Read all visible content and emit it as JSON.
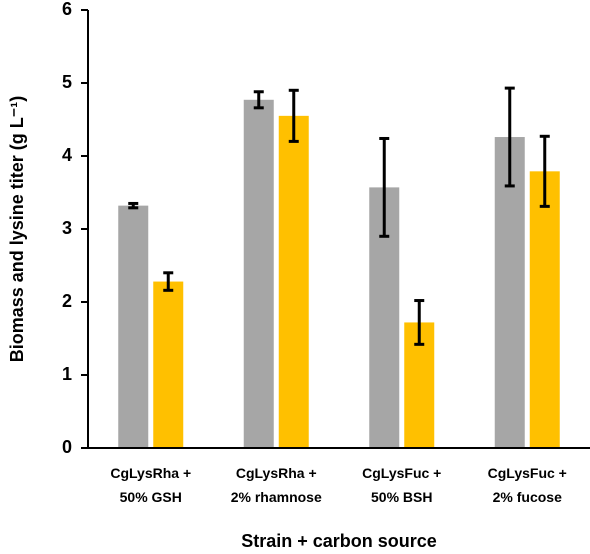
{
  "chart_data": {
    "type": "bar",
    "y_label": "Biomass and lysine titer (g L⁻¹)",
    "x_label": "Strain + carbon source",
    "categories": [
      "CgLysRha +\n50% GSH",
      "CgLysRha +\n2% rhamnose",
      "CgLysFuc +\n50% BSH",
      "CgLysFuc +\n2% fucose"
    ],
    "series": [
      {
        "color": "#a6a6a6",
        "values": [
          3.32,
          4.77,
          3.57,
          4.26
        ],
        "errors": [
          0.03,
          0.11,
          0.67,
          0.67
        ]
      },
      {
        "color": "#ffc000",
        "values": [
          2.28,
          4.55,
          1.72,
          3.79
        ],
        "errors": [
          0.12,
          0.35,
          0.3,
          0.48
        ]
      }
    ],
    "ylim": [
      0,
      6
    ],
    "yticks": [
      0,
      1,
      2,
      3,
      4,
      5,
      6
    ]
  }
}
